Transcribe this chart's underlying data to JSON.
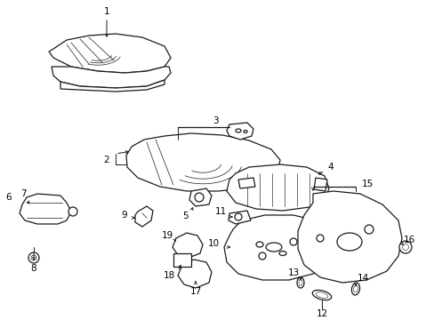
{
  "background_color": "#ffffff",
  "line_color": "#1a1a1a",
  "text_color": "#000000",
  "figsize": [
    4.89,
    3.6
  ],
  "dpi": 100,
  "xlim": [
    0,
    489
  ],
  "ylim": [
    0,
    360
  ]
}
